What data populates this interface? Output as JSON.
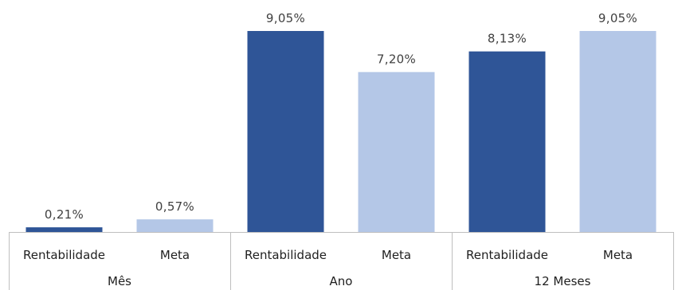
{
  "chart_data": {
    "type": "bar",
    "title": "",
    "xlabel": "",
    "ylabel": "",
    "ylim": [
      0,
      9.05
    ],
    "grid": false,
    "legend": "none",
    "value_format": "percent-comma-2dp",
    "groups": [
      {
        "name": "Mês",
        "bars": [
          {
            "category": "Rentabilidade",
            "value": 0.21,
            "label": "0,21%"
          },
          {
            "category": "Meta",
            "value": 0.57,
            "label": "0,57%"
          }
        ]
      },
      {
        "name": "Ano",
        "bars": [
          {
            "category": "Rentabilidade",
            "value": 9.05,
            "label": "9,05%"
          },
          {
            "category": "Meta",
            "value": 7.2,
            "label": "7,20%"
          }
        ]
      },
      {
        "name": "12 Meses",
        "bars": [
          {
            "category": "Rentabilidade",
            "value": 8.13,
            "label": "8,13%"
          },
          {
            "category": "Meta",
            "value": 9.05,
            "label": "9,05%"
          }
        ]
      }
    ],
    "colors": {
      "Rentabilidade": "#2f5597",
      "Meta": "#b4c7e7"
    }
  }
}
